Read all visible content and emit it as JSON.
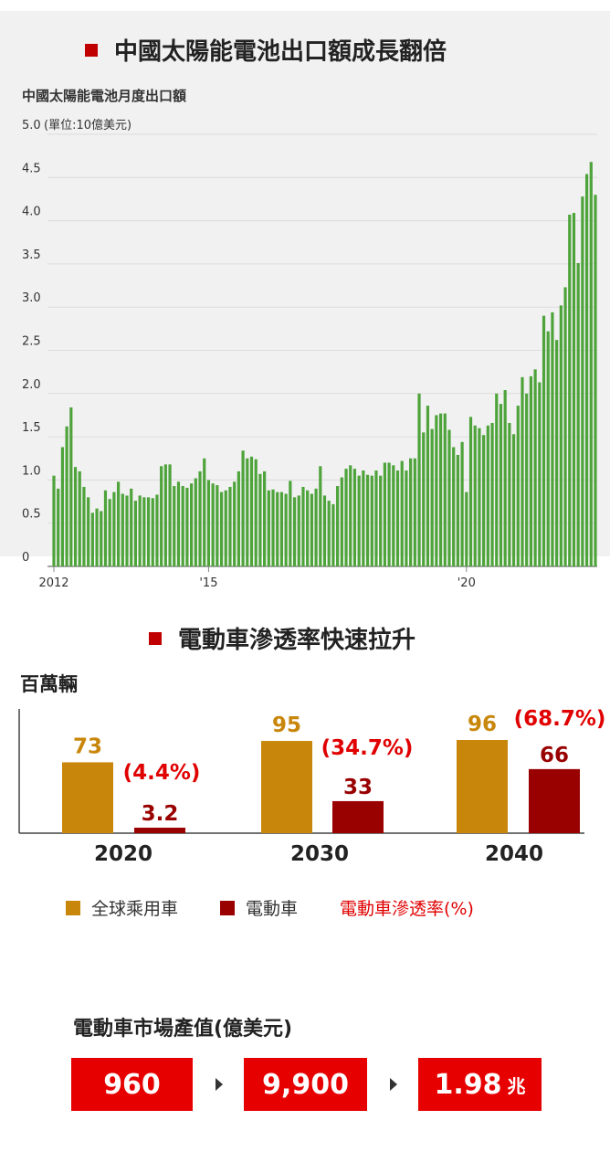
{
  "section1": {
    "title": "中國太陽能電池出口額成長翻倍"
  },
  "section2": {
    "title": "電動車滲透率快速拉升"
  },
  "chart_data": [
    {
      "type": "bar",
      "title": "中國太陽能電池月度出口額",
      "ylabel": "(單位:10億美元)",
      "ylim": [
        0,
        5.0
      ],
      "yticks": [
        "0",
        "0.5",
        "1.0",
        "1.5",
        "2.0",
        "2.5",
        "3.0",
        "3.5",
        "4.0",
        "4.5",
        "5.0"
      ],
      "xticks": [
        "2012",
        "'15",
        "'20"
      ],
      "grid": true,
      "color": "#4ea33b",
      "values": [
        1.05,
        0.9,
        1.38,
        1.62,
        1.84,
        1.15,
        1.1,
        0.92,
        0.8,
        0.62,
        0.67,
        0.64,
        0.88,
        0.78,
        0.86,
        0.98,
        0.84,
        0.82,
        0.9,
        0.76,
        0.82,
        0.8,
        0.8,
        0.79,
        0.83,
        1.16,
        1.18,
        1.18,
        0.93,
        0.98,
        0.93,
        0.91,
        0.96,
        1.02,
        1.1,
        1.25,
        1.0,
        0.96,
        0.94,
        0.86,
        0.88,
        0.92,
        0.98,
        1.1,
        1.34,
        1.25,
        1.27,
        1.24,
        1.07,
        1.1,
        0.88,
        0.89,
        0.86,
        0.86,
        0.84,
        0.99,
        0.8,
        0.82,
        0.92,
        0.88,
        0.84,
        0.9,
        1.16,
        0.82,
        0.76,
        0.72,
        0.93,
        1.03,
        1.13,
        1.17,
        1.13,
        1.05,
        1.11,
        1.06,
        1.05,
        1.11,
        1.05,
        1.2,
        1.2,
        1.17,
        1.11,
        1.22,
        1.11,
        1.25,
        1.25,
        2.0,
        1.55,
        1.86,
        1.59,
        1.75,
        1.77,
        1.77,
        1.58,
        1.38,
        1.29,
        1.44,
        0.86,
        1.73,
        1.63,
        1.6,
        1.52,
        1.63,
        1.66,
        2.0,
        1.88,
        2.04,
        1.66,
        1.53,
        1.86,
        2.19,
        2.0,
        2.2,
        2.28,
        2.13,
        2.9,
        2.72,
        2.94,
        2.62,
        3.02,
        3.23,
        4.07,
        4.09,
        3.51,
        4.28,
        4.54,
        4.68,
        4.3
      ]
    },
    {
      "type": "bar",
      "ylabel": "百萬輛",
      "categories": [
        "2020",
        "2030",
        "2040"
      ],
      "series": [
        {
          "name": "全球乘用車",
          "values": [
            73,
            95,
            96
          ],
          "color": "#c8860a"
        },
        {
          "name": "電動車",
          "values": [
            3.2,
            33,
            66
          ],
          "color": "#990000"
        }
      ],
      "data_labels": {
        "passenger": [
          "73",
          "95",
          "96"
        ],
        "ev": [
          "3.2",
          "33",
          "66"
        ],
        "penetration": [
          "(4.4%)",
          "(34.7%)",
          "(68.7%)"
        ]
      },
      "penetration_label": "電動車滲透率(%)"
    }
  ],
  "market": {
    "title": "電動車市場產值(億美元)",
    "values": [
      "960",
      "9,900",
      "1.98"
    ],
    "last_unit": "兆"
  }
}
